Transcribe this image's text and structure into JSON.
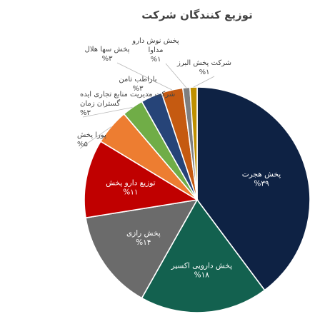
{
  "chart_data": {
    "type": "pie",
    "title": "توزیع کنندگان شرکت",
    "start_angle_deg": 0,
    "direction": "clockwise",
    "slices": [
      {
        "label": [
          "پخش هجرت"
        ],
        "value": 39,
        "value_label": "%۳۹",
        "color": "#0e2244",
        "label_pos": "inside"
      },
      {
        "label": [
          "پخش دارویی اکسیر"
        ],
        "value": 18,
        "value_label": "%۱۸",
        "color": "#13614f",
        "label_pos": "inside"
      },
      {
        "label": [
          "پخش رازی"
        ],
        "value": 14,
        "value_label": "%۱۴",
        "color": "#6b6b6b",
        "label_pos": "inside"
      },
      {
        "label": [
          "توزیع دارو پخش"
        ],
        "value": 11,
        "value_label": "%۱۱",
        "color": "#c00000",
        "label_pos": "inside"
      },
      {
        "label": [
          "پورا پخش"
        ],
        "value": 5,
        "value_label": "%۵",
        "color": "#ed7d31",
        "label_pos": "outside"
      },
      {
        "label": [
          "شرکت مدیریت منابع تجاری ایده",
          "گستران زمان"
        ],
        "value": 3,
        "value_label": "%۳",
        "color": "#70ad47",
        "label_pos": "outside"
      },
      {
        "label": [
          "باراطب تامن"
        ],
        "value": 3,
        "value_label": "%۳",
        "color": "#264478",
        "label_pos": "outside"
      },
      {
        "label": [
          "پخش سها هلال"
        ],
        "value": 3,
        "value_label": "%۳",
        "color": "#c55a11",
        "label_pos": "outside"
      },
      {
        "label": [
          "پخش نوش دارو",
          "مداوا"
        ],
        "value": 1,
        "value_label": "%۱",
        "color": "#7f7f7f",
        "label_pos": "outside"
      },
      {
        "label": [
          "شرکت پخش البرز"
        ],
        "value": 1,
        "value_label": "%۱",
        "color": "#bf9000",
        "label_pos": "outside"
      }
    ]
  }
}
